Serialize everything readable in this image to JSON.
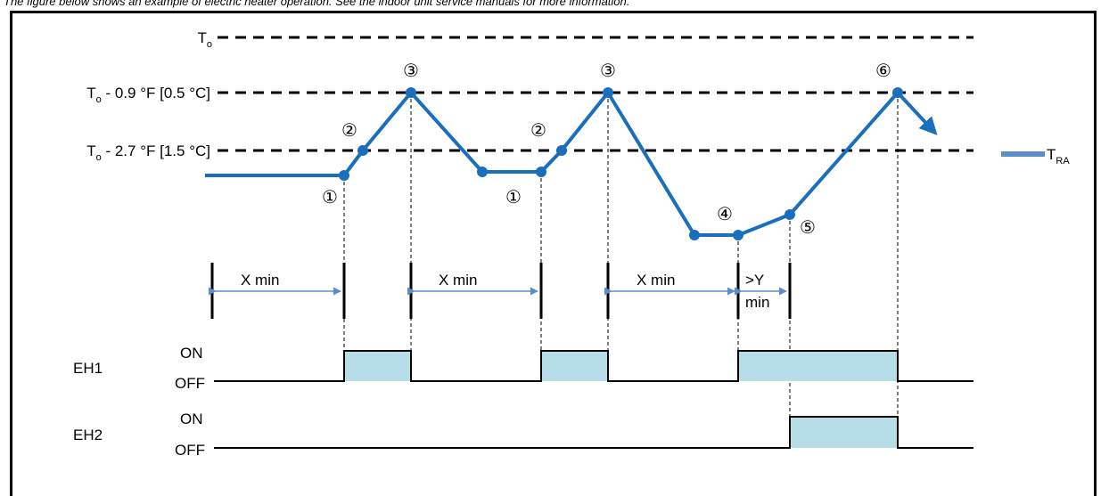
{
  "caption": "The figure below shows an example of electric heater operation. See the indoor unit service manuals for more information.",
  "levels": {
    "to": {
      "main": "T",
      "sub": "o",
      "rest": ""
    },
    "to_minus_09": {
      "main": "T",
      "sub": "o",
      "rest": " - 0.9 °F [0.5 °C]"
    },
    "to_minus_27": {
      "main": "T",
      "sub": "o",
      "rest": " - 2.7 °F [1.5 °C]"
    }
  },
  "legend": {
    "main": "T",
    "sub": "RA"
  },
  "markers": [
    "①",
    "②",
    "③",
    "②",
    "③",
    "①",
    "④",
    "⑤",
    "⑥"
  ],
  "timers": {
    "x_min": "X min",
    "y_min_line1": ">Y",
    "y_min_line2": "min"
  },
  "heaters": {
    "eh1": {
      "label": "EH1",
      "on": "ON",
      "off": "OFF"
    },
    "eh2": {
      "label": "EH2",
      "on": "ON",
      "off": "OFF"
    }
  },
  "colors": {
    "line": "#1a6fbc",
    "fill": "#b6dde8",
    "dashed": "#000000"
  }
}
